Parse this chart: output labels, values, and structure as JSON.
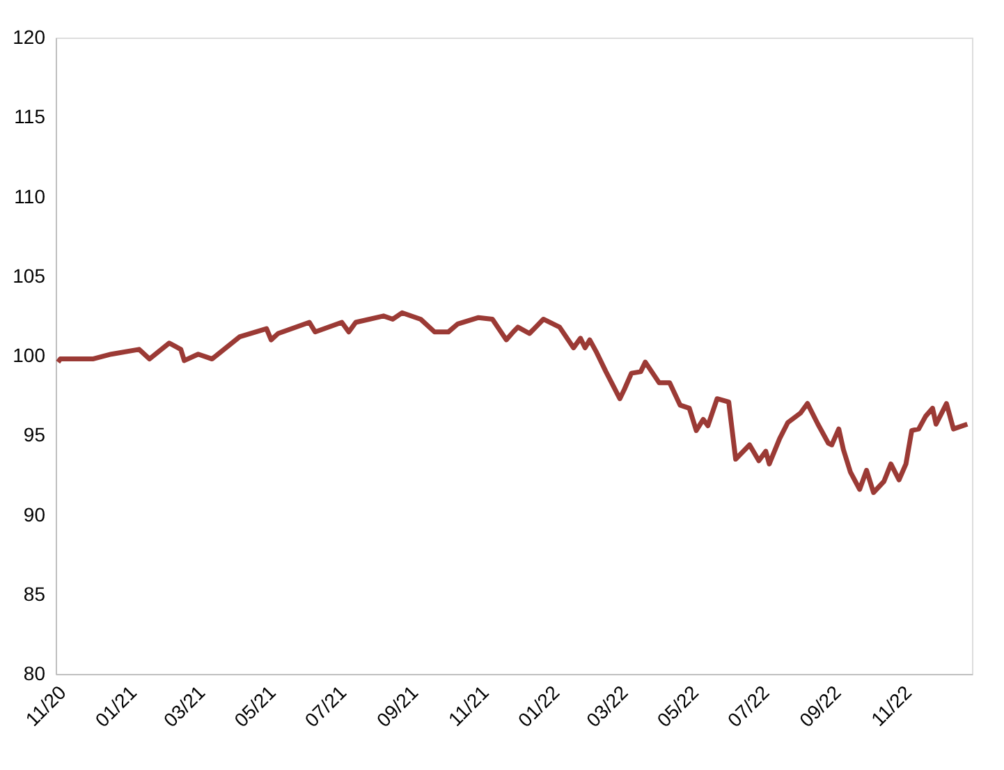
{
  "chart_data": {
    "type": "line",
    "x": [
      "2020-11-03",
      "2020-11-05",
      "2020-12-03",
      "2020-12-19",
      "2021-01-12",
      "2021-01-21",
      "2021-02-07",
      "2021-02-17",
      "2021-02-20",
      "2021-03-04",
      "2021-03-16",
      "2021-04-09",
      "2021-05-02",
      "2021-05-06",
      "2021-05-12",
      "2021-06-08",
      "2021-06-13",
      "2021-07-06",
      "2021-07-12",
      "2021-07-18",
      "2021-08-11",
      "2021-08-19",
      "2021-08-27",
      "2021-09-12",
      "2021-09-24",
      "2021-10-06",
      "2021-10-14",
      "2021-11-01",
      "2021-11-13",
      "2021-11-25",
      "2021-12-01",
      "2021-12-05",
      "2021-12-15",
      "2021-12-27",
      "2022-01-10",
      "2022-01-22",
      "2022-01-28",
      "2022-02-01",
      "2022-02-05",
      "2022-02-11",
      "2022-02-19",
      "2022-03-03",
      "2022-03-07",
      "2022-03-13",
      "2022-03-21",
      "2022-03-25",
      "2022-04-06",
      "2022-04-15",
      "2022-04-24",
      "2022-05-02",
      "2022-05-08",
      "2022-05-14",
      "2022-05-18",
      "2022-05-26",
      "2022-06-05",
      "2022-06-11",
      "2022-06-23",
      "2022-07-01",
      "2022-07-07",
      "2022-07-10",
      "2022-07-19",
      "2022-07-26",
      "2022-08-06",
      "2022-08-12",
      "2022-08-21",
      "2022-08-30",
      "2022-09-02",
      "2022-09-08",
      "2022-09-12",
      "2022-09-18",
      "2022-09-26",
      "2022-10-02",
      "2022-10-08",
      "2022-10-17",
      "2022-10-23",
      "2022-10-30",
      "2022-11-05",
      "2022-11-10",
      "2022-11-16",
      "2022-11-22",
      "2022-11-28",
      "2022-12-01",
      "2022-12-10",
      "2022-12-16",
      "2022-12-28"
    ],
    "series": [
      {
        "color": "#9b3a35",
        "values": [
          99.6,
          99.8,
          99.8,
          100.1,
          100.4,
          99.8,
          100.8,
          100.4,
          99.7,
          100.1,
          99.8,
          101.2,
          101.7,
          101.0,
          101.4,
          102.1,
          101.5,
          102.1,
          101.5,
          102.1,
          102.5,
          102.3,
          102.7,
          102.3,
          101.5,
          101.5,
          102.0,
          102.4,
          102.3,
          101.0,
          101.5,
          101.8,
          101.4,
          102.3,
          101.8,
          100.5,
          101.1,
          100.5,
          101.0,
          100.2,
          99.0,
          97.3,
          97.9,
          98.9,
          99.0,
          99.6,
          98.3,
          98.3,
          96.9,
          96.7,
          95.3,
          96.0,
          95.6,
          97.3,
          97.1,
          93.5,
          94.4,
          93.4,
          94.0,
          93.2,
          94.8,
          95.8,
          96.4,
          97.0,
          95.7,
          94.5,
          94.4,
          95.4,
          94.1,
          92.7,
          91.6,
          92.8,
          91.4,
          92.1,
          93.2,
          92.2,
          93.2,
          95.3,
          95.4,
          96.2,
          96.7,
          95.7,
          97.0,
          95.4,
          95.7
        ]
      }
    ],
    "xlim": [
      "2020-11-01",
      "2023-01-01"
    ],
    "xticks": [
      {
        "value": "2020-11-01",
        "label": "11/20"
      },
      {
        "value": "2021-01-01",
        "label": "01/21"
      },
      {
        "value": "2021-03-01",
        "label": "03/21"
      },
      {
        "value": "2021-05-01",
        "label": "05/21"
      },
      {
        "value": "2021-07-01",
        "label": "07/21"
      },
      {
        "value": "2021-09-01",
        "label": "09/21"
      },
      {
        "value": "2021-11-01",
        "label": "11/21"
      },
      {
        "value": "2022-01-01",
        "label": "01/22"
      },
      {
        "value": "2022-03-01",
        "label": "03/22"
      },
      {
        "value": "2022-05-01",
        "label": "05/22"
      },
      {
        "value": "2022-07-01",
        "label": "07/22"
      },
      {
        "value": "2022-09-01",
        "label": "09/22"
      },
      {
        "value": "2022-11-01",
        "label": "11/22"
      }
    ],
    "ylim": [
      80,
      120
    ],
    "yticks": [
      80,
      85,
      90,
      95,
      100,
      105,
      110,
      115,
      120
    ],
    "grid": false,
    "marker": "none",
    "line_style": "solid"
  }
}
